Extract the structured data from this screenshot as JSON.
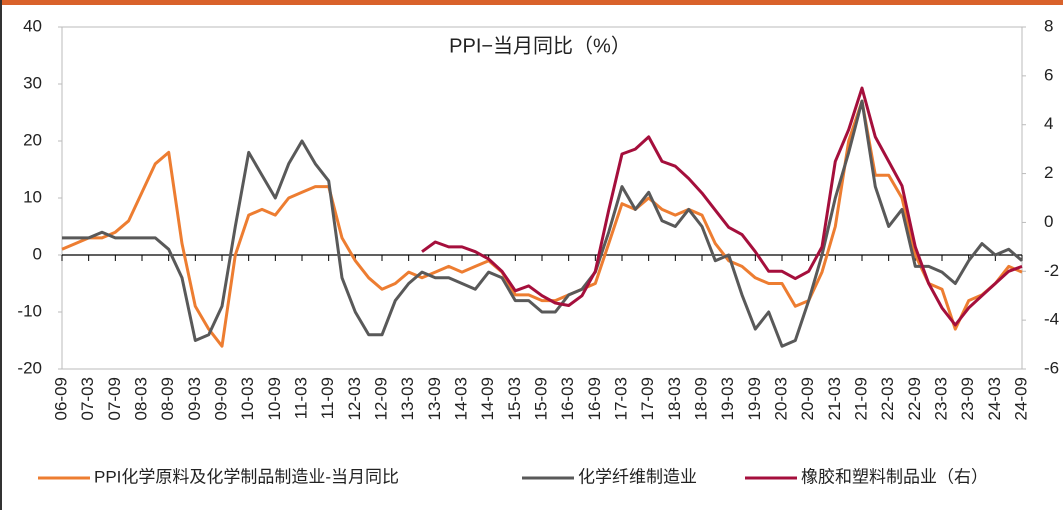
{
  "chart_data": {
    "type": "line",
    "title": "PPI−当月同比（%）",
    "categories": [
      "06-09",
      null,
      "07-03",
      null,
      "07-09",
      null,
      "08-03",
      null,
      "08-09",
      null,
      "09-03",
      null,
      "09-09",
      null,
      "10-03",
      null,
      "10-09",
      null,
      "11-03",
      null,
      "11-09",
      null,
      "12-03",
      null,
      "12-09",
      null,
      "13-03",
      null,
      "13-09",
      null,
      "14-03",
      null,
      "14-09",
      null,
      "15-03",
      null,
      "15-09",
      null,
      "16-03",
      null,
      "16-09",
      null,
      "17-03",
      null,
      "17-09",
      null,
      "18-03",
      null,
      "18-09",
      null,
      "19-03",
      null,
      "19-09",
      null,
      "20-03",
      null,
      "20-09",
      null,
      "21-03",
      null,
      "21-09",
      null,
      "22-03",
      null,
      "22-09",
      null,
      "23-03",
      null,
      "23-09",
      null,
      "24-03",
      null,
      "24-09"
    ],
    "series": [
      {
        "name": "PPI化学原料及化学制品制造业-当月同比",
        "color": "#ed7d31",
        "axis": "y",
        "values": [
          1,
          2,
          3,
          3,
          4,
          6,
          11,
          16,
          18,
          2,
          -9,
          -13,
          -16,
          0,
          7,
          8,
          7,
          10,
          11,
          12,
          12,
          3,
          -1,
          -4,
          -6,
          -5,
          -3,
          -4,
          -3,
          -2,
          -3,
          -2,
          -1,
          -3,
          -7,
          -7,
          -8,
          -8,
          -7,
          -6,
          -5,
          2,
          9,
          8,
          10,
          8,
          7,
          8,
          7,
          2,
          -1,
          -2,
          -4,
          -5,
          -5,
          -9,
          -8,
          -3,
          5,
          20,
          27,
          14,
          14,
          10,
          0,
          -5,
          -6,
          -13,
          -8,
          -7,
          -5,
          -2,
          -3
        ]
      },
      {
        "name": "化学纤维制造业",
        "color": "#595959",
        "axis": "y",
        "values": [
          3,
          3,
          3,
          4,
          3,
          3,
          3,
          3,
          1,
          -4,
          -15,
          -14,
          -9,
          5,
          18,
          14,
          10,
          16,
          20,
          16,
          13,
          -4,
          -10,
          -14,
          -14,
          -8,
          -5,
          -3,
          -4,
          -4,
          -5,
          -6,
          -3,
          -4,
          -8,
          -8,
          -10,
          -10,
          -7,
          -6,
          -3,
          4,
          12,
          8,
          11,
          6,
          5,
          8,
          5,
          -1,
          0,
          -7,
          -13,
          -10,
          -16,
          -15,
          -8,
          0,
          10,
          18,
          27,
          12,
          5,
          8,
          -2,
          -2,
          -3,
          -5,
          -1,
          2,
          0,
          1,
          -1
        ]
      },
      {
        "name": "橡胶和塑料制品业（右）",
        "color": "#a50f3c",
        "axis": "y2",
        "values": [
          null,
          null,
          null,
          null,
          null,
          null,
          null,
          null,
          null,
          null,
          null,
          null,
          null,
          null,
          null,
          null,
          null,
          null,
          null,
          null,
          null,
          null,
          null,
          null,
          null,
          null,
          null,
          -1.2,
          -0.8,
          -1.0,
          -1.0,
          -1.2,
          -1.5,
          -2.0,
          -2.8,
          -2.6,
          -3.0,
          -3.3,
          -3.4,
          -3.0,
          -2.0,
          0.5,
          2.8,
          3.0,
          3.5,
          2.5,
          2.3,
          1.8,
          1.2,
          0.5,
          -0.2,
          -0.5,
          -1.2,
          -2.0,
          -2.0,
          -2.3,
          -2.0,
          -1.0,
          2.5,
          3.8,
          5.5,
          3.5,
          2.5,
          1.5,
          -1.0,
          -2.5,
          -3.5,
          -4.2,
          -3.5,
          -3.0,
          -2.5,
          -2.0,
          -1.8
        ]
      }
    ],
    "ylim": [
      -20,
      40
    ],
    "yticks": [
      -20,
      -10,
      0,
      10,
      20,
      30,
      40
    ],
    "y2lim": [
      -6,
      8
    ],
    "y2ticks": [
      -6,
      -4,
      -2,
      0,
      2,
      4,
      6,
      8
    ],
    "legend": "bottom"
  }
}
